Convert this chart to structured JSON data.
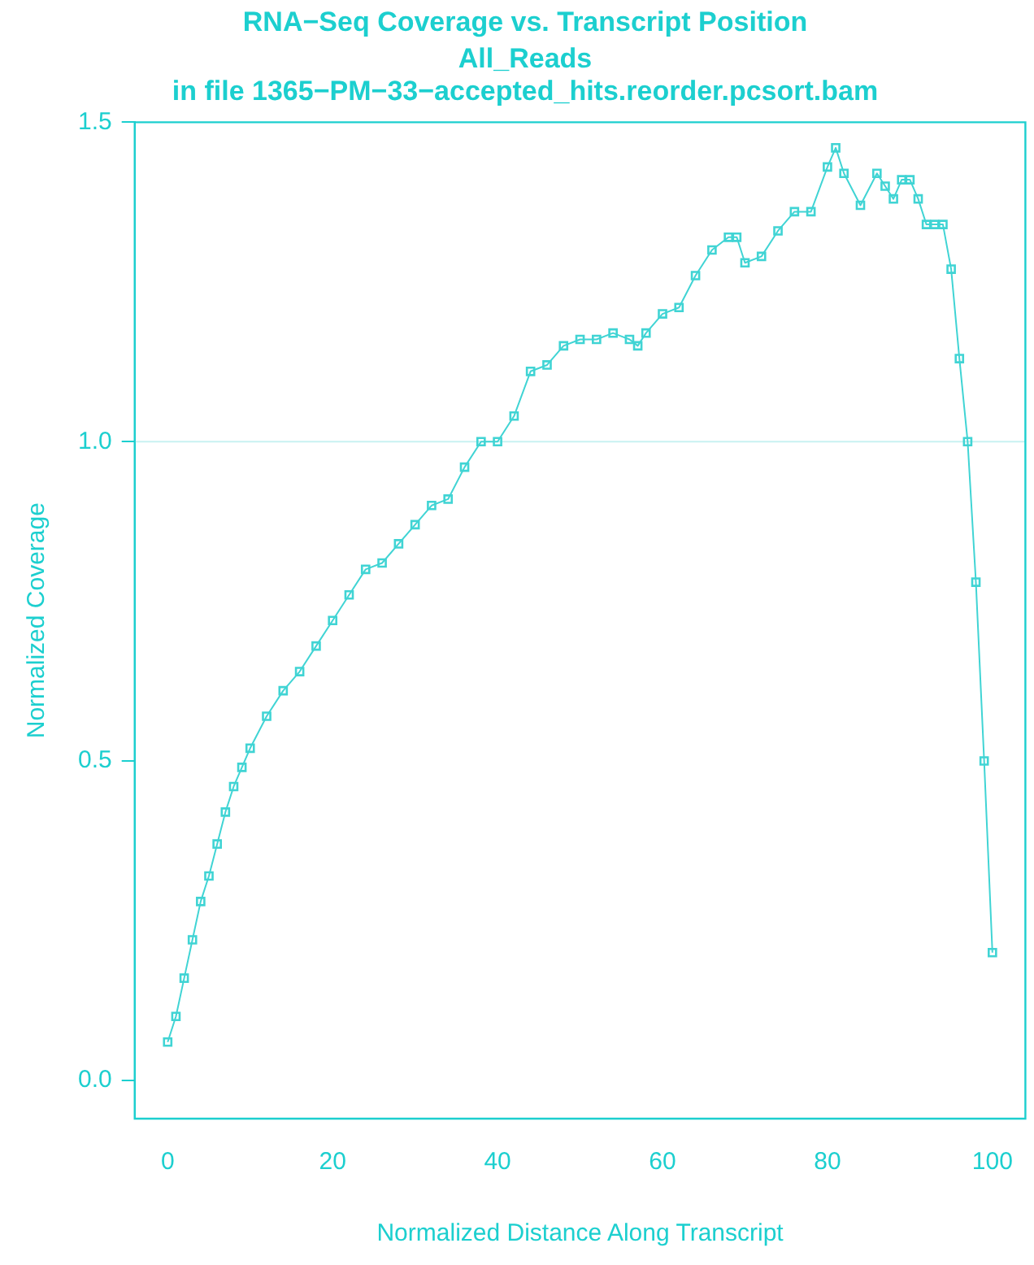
{
  "chart_data": {
    "type": "line",
    "title": "RNA−Seq Coverage vs. Transcript Position",
    "subtitle": "All_Reads\nin file 1365−PM−33−accepted_hits.reorder.pcsort.bam",
    "xlabel": "Normalized Distance Along Transcript",
    "ylabel": "Normalized Coverage",
    "x": [
      0,
      1,
      2,
      3,
      4,
      5,
      6,
      7,
      8,
      9,
      10,
      12,
      14,
      16,
      18,
      20,
      22,
      24,
      26,
      28,
      30,
      32,
      34,
      36,
      38,
      40,
      42,
      44,
      46,
      48,
      50,
      52,
      54,
      56,
      57,
      58,
      60,
      62,
      64,
      66,
      68,
      69,
      70,
      72,
      74,
      76,
      78,
      80,
      81,
      82,
      84,
      86,
      87,
      88,
      89,
      90,
      91,
      92,
      93,
      94,
      95,
      96,
      97,
      98,
      99,
      100
    ],
    "series": [
      {
        "color": "#40d4d4",
        "values": [
          0.06,
          0.1,
          0.16,
          0.22,
          0.28,
          0.32,
          0.37,
          0.42,
          0.46,
          0.49,
          0.52,
          0.57,
          0.61,
          0.64,
          0.68,
          0.72,
          0.76,
          0.8,
          0.81,
          0.84,
          0.87,
          0.9,
          0.91,
          0.96,
          1.0,
          1.0,
          1.04,
          1.11,
          1.12,
          1.15,
          1.16,
          1.16,
          1.17,
          1.16,
          1.15,
          1.17,
          1.2,
          1.21,
          1.26,
          1.3,
          1.32,
          1.32,
          1.28,
          1.29,
          1.33,
          1.36,
          1.36,
          1.43,
          1.46,
          1.42,
          1.37,
          1.42,
          1.4,
          1.38,
          1.41,
          1.41,
          1.38,
          1.34,
          1.34,
          1.34,
          1.27,
          1.13,
          1.0,
          0.78,
          0.5,
          0.2
        ]
      }
    ],
    "xlim": [
      -4,
      104
    ],
    "ylim": [
      -0.06,
      1.5
    ],
    "xticks": [
      0,
      20,
      40,
      60,
      80,
      100
    ],
    "yticks": [
      {
        "value": 0,
        "label": "0.0"
      },
      0.5,
      {
        "value": 1,
        "label": "1.0"
      },
      1.5
    ],
    "ref_lines": [
      {
        "axis": "y",
        "value": 1.0,
        "color": "#c8f2f2"
      }
    ],
    "grid": false,
    "legend": false,
    "marker": "square",
    "line_style": "solid"
  }
}
